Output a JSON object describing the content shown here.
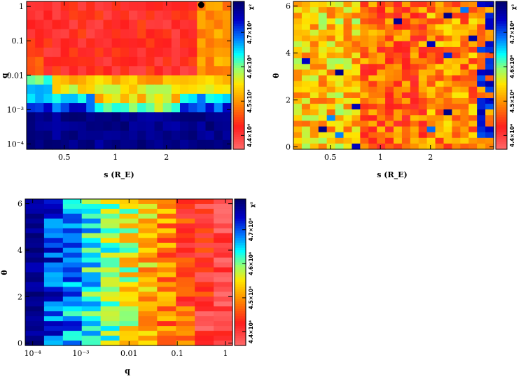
{
  "chart_data": [
    {
      "id": "s-q",
      "type": "heatmap",
      "title": "",
      "xlabel": "s (R_E)",
      "ylabel": "q",
      "xscale": "log",
      "yscale": "log",
      "xlim": [
        0.3,
        4.8
      ],
      "ylim": [
        7e-05,
        1.4
      ],
      "x_ticks": [
        {
          "value": 0.5,
          "label": "0.5"
        },
        {
          "value": 1,
          "label": "1"
        },
        {
          "value": 2,
          "label": "2"
        }
      ],
      "y_ticks": [
        {
          "value": 0.0001,
          "label": "10⁻⁴"
        },
        {
          "value": 0.001,
          "label": "10⁻³"
        },
        {
          "value": 0.01,
          "label": "0.01"
        },
        {
          "value": 0.1,
          "label": "0.1"
        },
        {
          "value": 1,
          "label": "1"
        }
      ],
      "grid_cols": 24,
      "grid_rows": 16,
      "grid_seed": 11,
      "colorbar": {
        "label": "χ²",
        "ticks": [
          {
            "value": 44000,
            "label": "4.4×10⁴"
          },
          {
            "value": 45000,
            "label": "4.5×10⁴"
          },
          {
            "value": 46000,
            "label": "4.6×10⁴"
          },
          {
            "value": 47000,
            "label": "4.7×10⁴"
          }
        ],
        "range": [
          43600,
          47900
        ]
      },
      "marker": {
        "label": "best fit",
        "s": 3.2,
        "q": 1.25
      },
      "grid": false
    },
    {
      "id": "s-theta",
      "type": "heatmap",
      "title": "",
      "xlabel": "s (R_E)",
      "ylabel": "θ",
      "xscale": "log",
      "yscale": "linear",
      "xlim": [
        0.3,
        4.8
      ],
      "ylim": [
        -0.1,
        6.2
      ],
      "x_ticks": [
        {
          "value": 0.5,
          "label": "0.5"
        },
        {
          "value": 1,
          "label": "1"
        },
        {
          "value": 2,
          "label": "2"
        }
      ],
      "y_ticks": [
        {
          "value": 0,
          "label": "0"
        },
        {
          "value": 2,
          "label": "2"
        },
        {
          "value": 4,
          "label": "4"
        },
        {
          "value": 6,
          "label": "6"
        }
      ],
      "grid_cols": 24,
      "grid_rows": 26,
      "grid_seed": 23,
      "colorbar": {
        "label": "χ²",
        "ticks": [
          {
            "value": 44000,
            "label": "4.4×10⁴"
          },
          {
            "value": 45000,
            "label": "4.5×10⁴"
          },
          {
            "value": 46000,
            "label": "4.6×10⁴"
          },
          {
            "value": 47000,
            "label": "4.7×10⁴"
          }
        ],
        "range": [
          43600,
          47900
        ]
      },
      "grid": false
    },
    {
      "id": "q-theta",
      "type": "heatmap",
      "title": "",
      "xlabel": "q",
      "ylabel": "θ",
      "xscale": "log",
      "yscale": "linear",
      "xlim": [
        7e-05,
        1.4
      ],
      "ylim": [
        -0.1,
        6.2
      ],
      "x_ticks": [
        {
          "value": 0.0001,
          "label": "10⁻⁴"
        },
        {
          "value": 0.001,
          "label": "10⁻³"
        },
        {
          "value": 0.01,
          "label": "0.01"
        },
        {
          "value": 0.1,
          "label": "0.1"
        },
        {
          "value": 1,
          "label": "1"
        }
      ],
      "y_ticks": [
        {
          "value": 0,
          "label": "0"
        },
        {
          "value": 2,
          "label": "2"
        },
        {
          "value": 4,
          "label": "4"
        },
        {
          "value": 6,
          "label": "6"
        }
      ],
      "grid_cols": 11,
      "grid_rows": 30,
      "grid_seed": 37,
      "colorbar": {
        "label": "χ²",
        "ticks": [
          {
            "value": 44000,
            "label": "4.4×10⁴"
          },
          {
            "value": 45000,
            "label": "4.5×10⁴"
          },
          {
            "value": 46000,
            "label": "4.6×10⁴"
          },
          {
            "value": 47000,
            "label": "4.7×10⁴"
          }
        ],
        "range": [
          43600,
          47900
        ]
      },
      "grid": false
    }
  ]
}
